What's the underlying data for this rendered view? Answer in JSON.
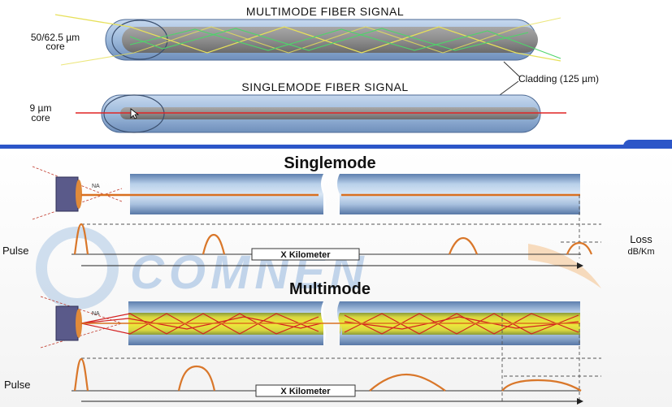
{
  "top": {
    "multimode_title": "MULTIMODE FIBER SIGNAL",
    "multimode_core_line1": "50/62.5 µm",
    "multimode_core_line2": "core",
    "singlemode_title": "SINGLEMODE FIBER SIGNAL",
    "singlemode_core_line1": "9 µm",
    "singlemode_core_line2": "core",
    "cladding_label": "Cladding (125 µm)"
  },
  "bottom": {
    "singlemode_title": "Singlemode",
    "multimode_title": "Multimode",
    "pulse_label": "Pulse",
    "distance_label": "X Kilometer",
    "na_label": "NA",
    "loss_line1": "Loss",
    "loss_line2": "dB/Km",
    "watermark": "COMNEN"
  },
  "colors": {
    "divider": "#2c56c8",
    "fiber_body": "#9cb9db",
    "core_gray": "#8d8d8d",
    "ray_yellow": "#e7e05a",
    "ray_green": "#4fd46a",
    "ray_red": "#e02424",
    "pulse_orange": "#d9772a",
    "mm_core_yellow": "#e8e23a"
  }
}
